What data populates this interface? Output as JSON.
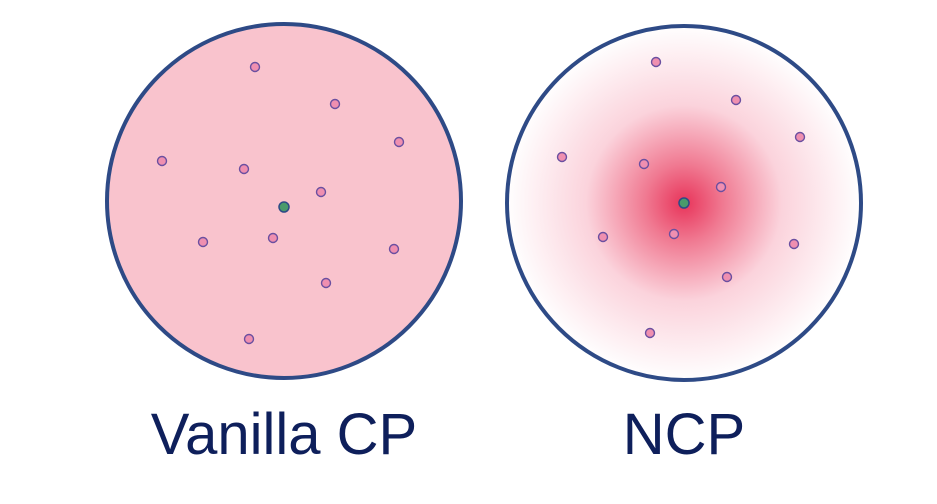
{
  "panels": [
    {
      "id": "vanilla",
      "label": "Vanilla CP",
      "fill_style": "uniform",
      "fill_color": "#f9c3cd",
      "border_color": "#2e4a86",
      "point_color": "#ef8fb0",
      "center_point_color": "#4a9a6b",
      "point_stroke_color": "#6b4fa0"
    },
    {
      "id": "ncp",
      "label": "NCP",
      "fill_style": "radial-gradient",
      "gradient_center_color": "#e8345a",
      "gradient_edge_color": "#ffffff",
      "border_color": "#2e4a86",
      "point_color": "#ef8fb0",
      "center_point_color": "#4a9a6b",
      "point_stroke_color": "#6b4fa0"
    }
  ],
  "caption_color": "#0e1f5b"
}
